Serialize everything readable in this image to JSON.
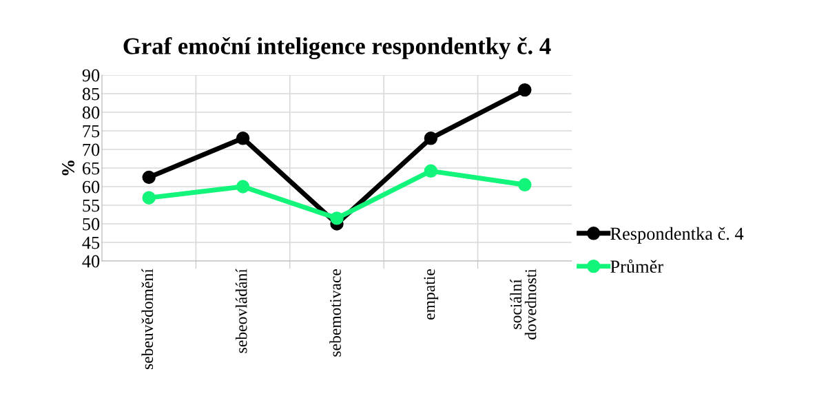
{
  "chart_data": {
    "type": "line",
    "title": "Graf emoční inteligence respondentky č. 4",
    "ylabel": "%",
    "categories": [
      "sebeuvědomění",
      "sebeovládání",
      "sebemotivace",
      "empatie",
      "sociální\ndovednosti"
    ],
    "series": [
      {
        "name": "Respondentka č. 4",
        "color": "#000000",
        "values": [
          62.5,
          73,
          50,
          73,
          86
        ]
      },
      {
        "name": "Průměr",
        "color": "#12f57a",
        "values": [
          57,
          60,
          51.5,
          64.2,
          60.5
        ]
      }
    ],
    "ylim": [
      40,
      90
    ],
    "yticks": [
      40,
      45,
      50,
      55,
      60,
      65,
      70,
      75,
      80,
      85,
      90
    ],
    "grid": true,
    "legend": "right",
    "marker": "circle",
    "line_style": "solid"
  }
}
